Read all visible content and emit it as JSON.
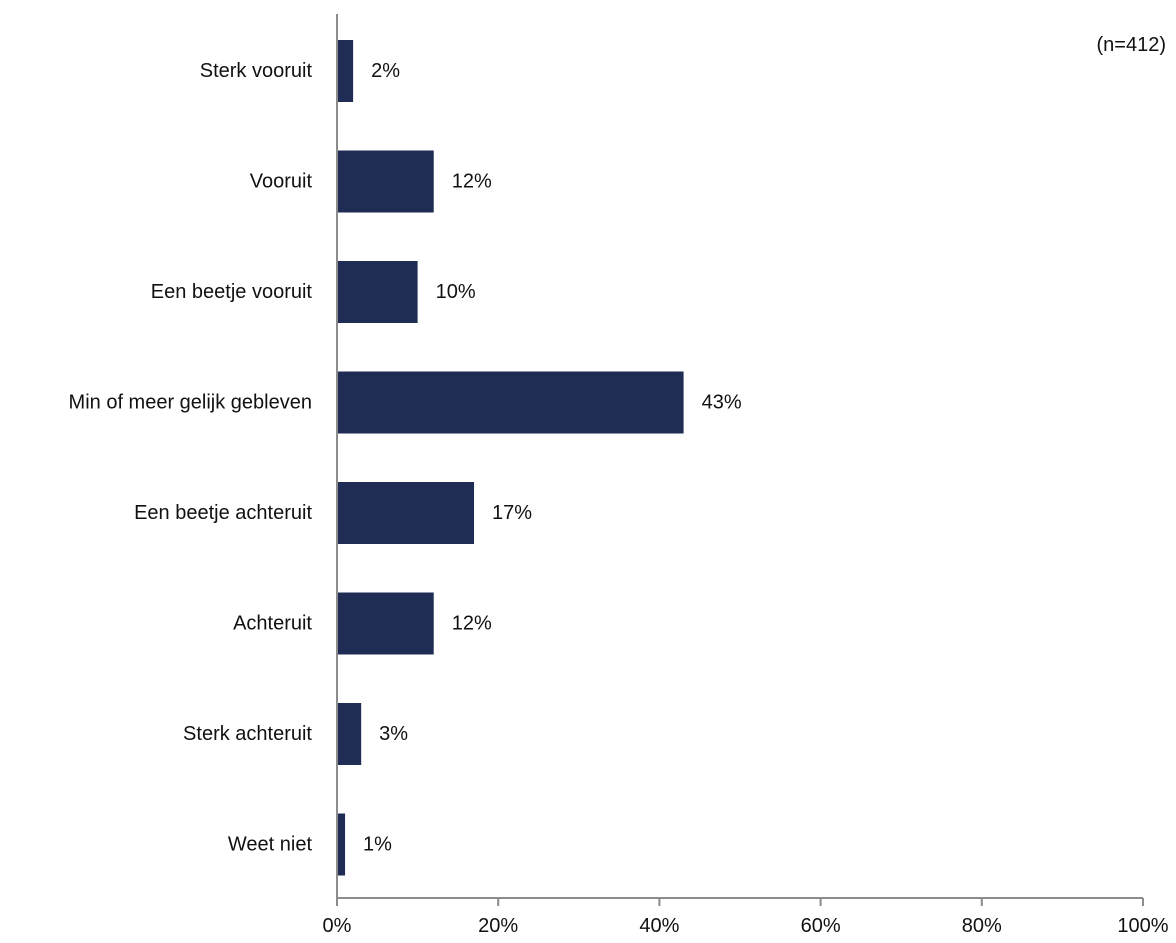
{
  "note": "(n=412)",
  "chart_data": {
    "type": "bar",
    "orientation": "horizontal",
    "categories": [
      "Sterk vooruit",
      "Vooruit",
      "Een beetje vooruit",
      "Min of meer gelijk gebleven",
      "Een beetje achteruit",
      "Achteruit",
      "Sterk achteruit",
      "Weet niet"
    ],
    "values": [
      2,
      12,
      10,
      43,
      17,
      12,
      3,
      1
    ],
    "value_labels": [
      "2%",
      "12%",
      "10%",
      "43%",
      "17%",
      "12%",
      "3%",
      "1%"
    ],
    "xlim": [
      0,
      100
    ],
    "xticks": [
      0,
      20,
      40,
      60,
      80,
      100
    ],
    "xtick_labels": [
      "0%",
      "20%",
      "40%",
      "60%",
      "80%",
      "100%"
    ],
    "title": "",
    "xlabel": "",
    "ylabel": "",
    "grid": false,
    "legend": "none",
    "colors": {
      "bar": "#1f2d54",
      "axis": "#8c8c8c",
      "text": "#111111"
    }
  }
}
